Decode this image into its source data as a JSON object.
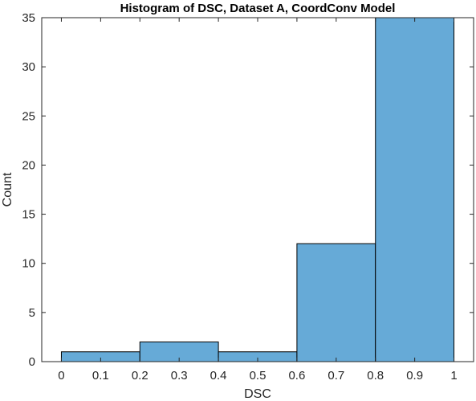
{
  "chart_data": {
    "type": "bar",
    "histogram": true,
    "title": "Histogram of DSC, Dataset A, CoordConv Model",
    "xlabel": "DSC",
    "ylabel": "Count",
    "bin_edges": [
      0,
      0.2,
      0.4,
      0.6,
      0.8,
      1.0
    ],
    "values": [
      1,
      2,
      1,
      12,
      35
    ],
    "xlim": [
      -0.05,
      1.05
    ],
    "ylim": [
      0,
      35
    ],
    "xticks": [
      "0",
      "0.1",
      "0.2",
      "0.3",
      "0.4",
      "0.5",
      "0.6",
      "0.7",
      "0.8",
      "0.9",
      "1"
    ],
    "yticks": [
      "0",
      "5",
      "10",
      "15",
      "20",
      "25",
      "30",
      "35"
    ],
    "grid": false,
    "bar_color": "#66AAD7",
    "edge_color": "#000000"
  }
}
